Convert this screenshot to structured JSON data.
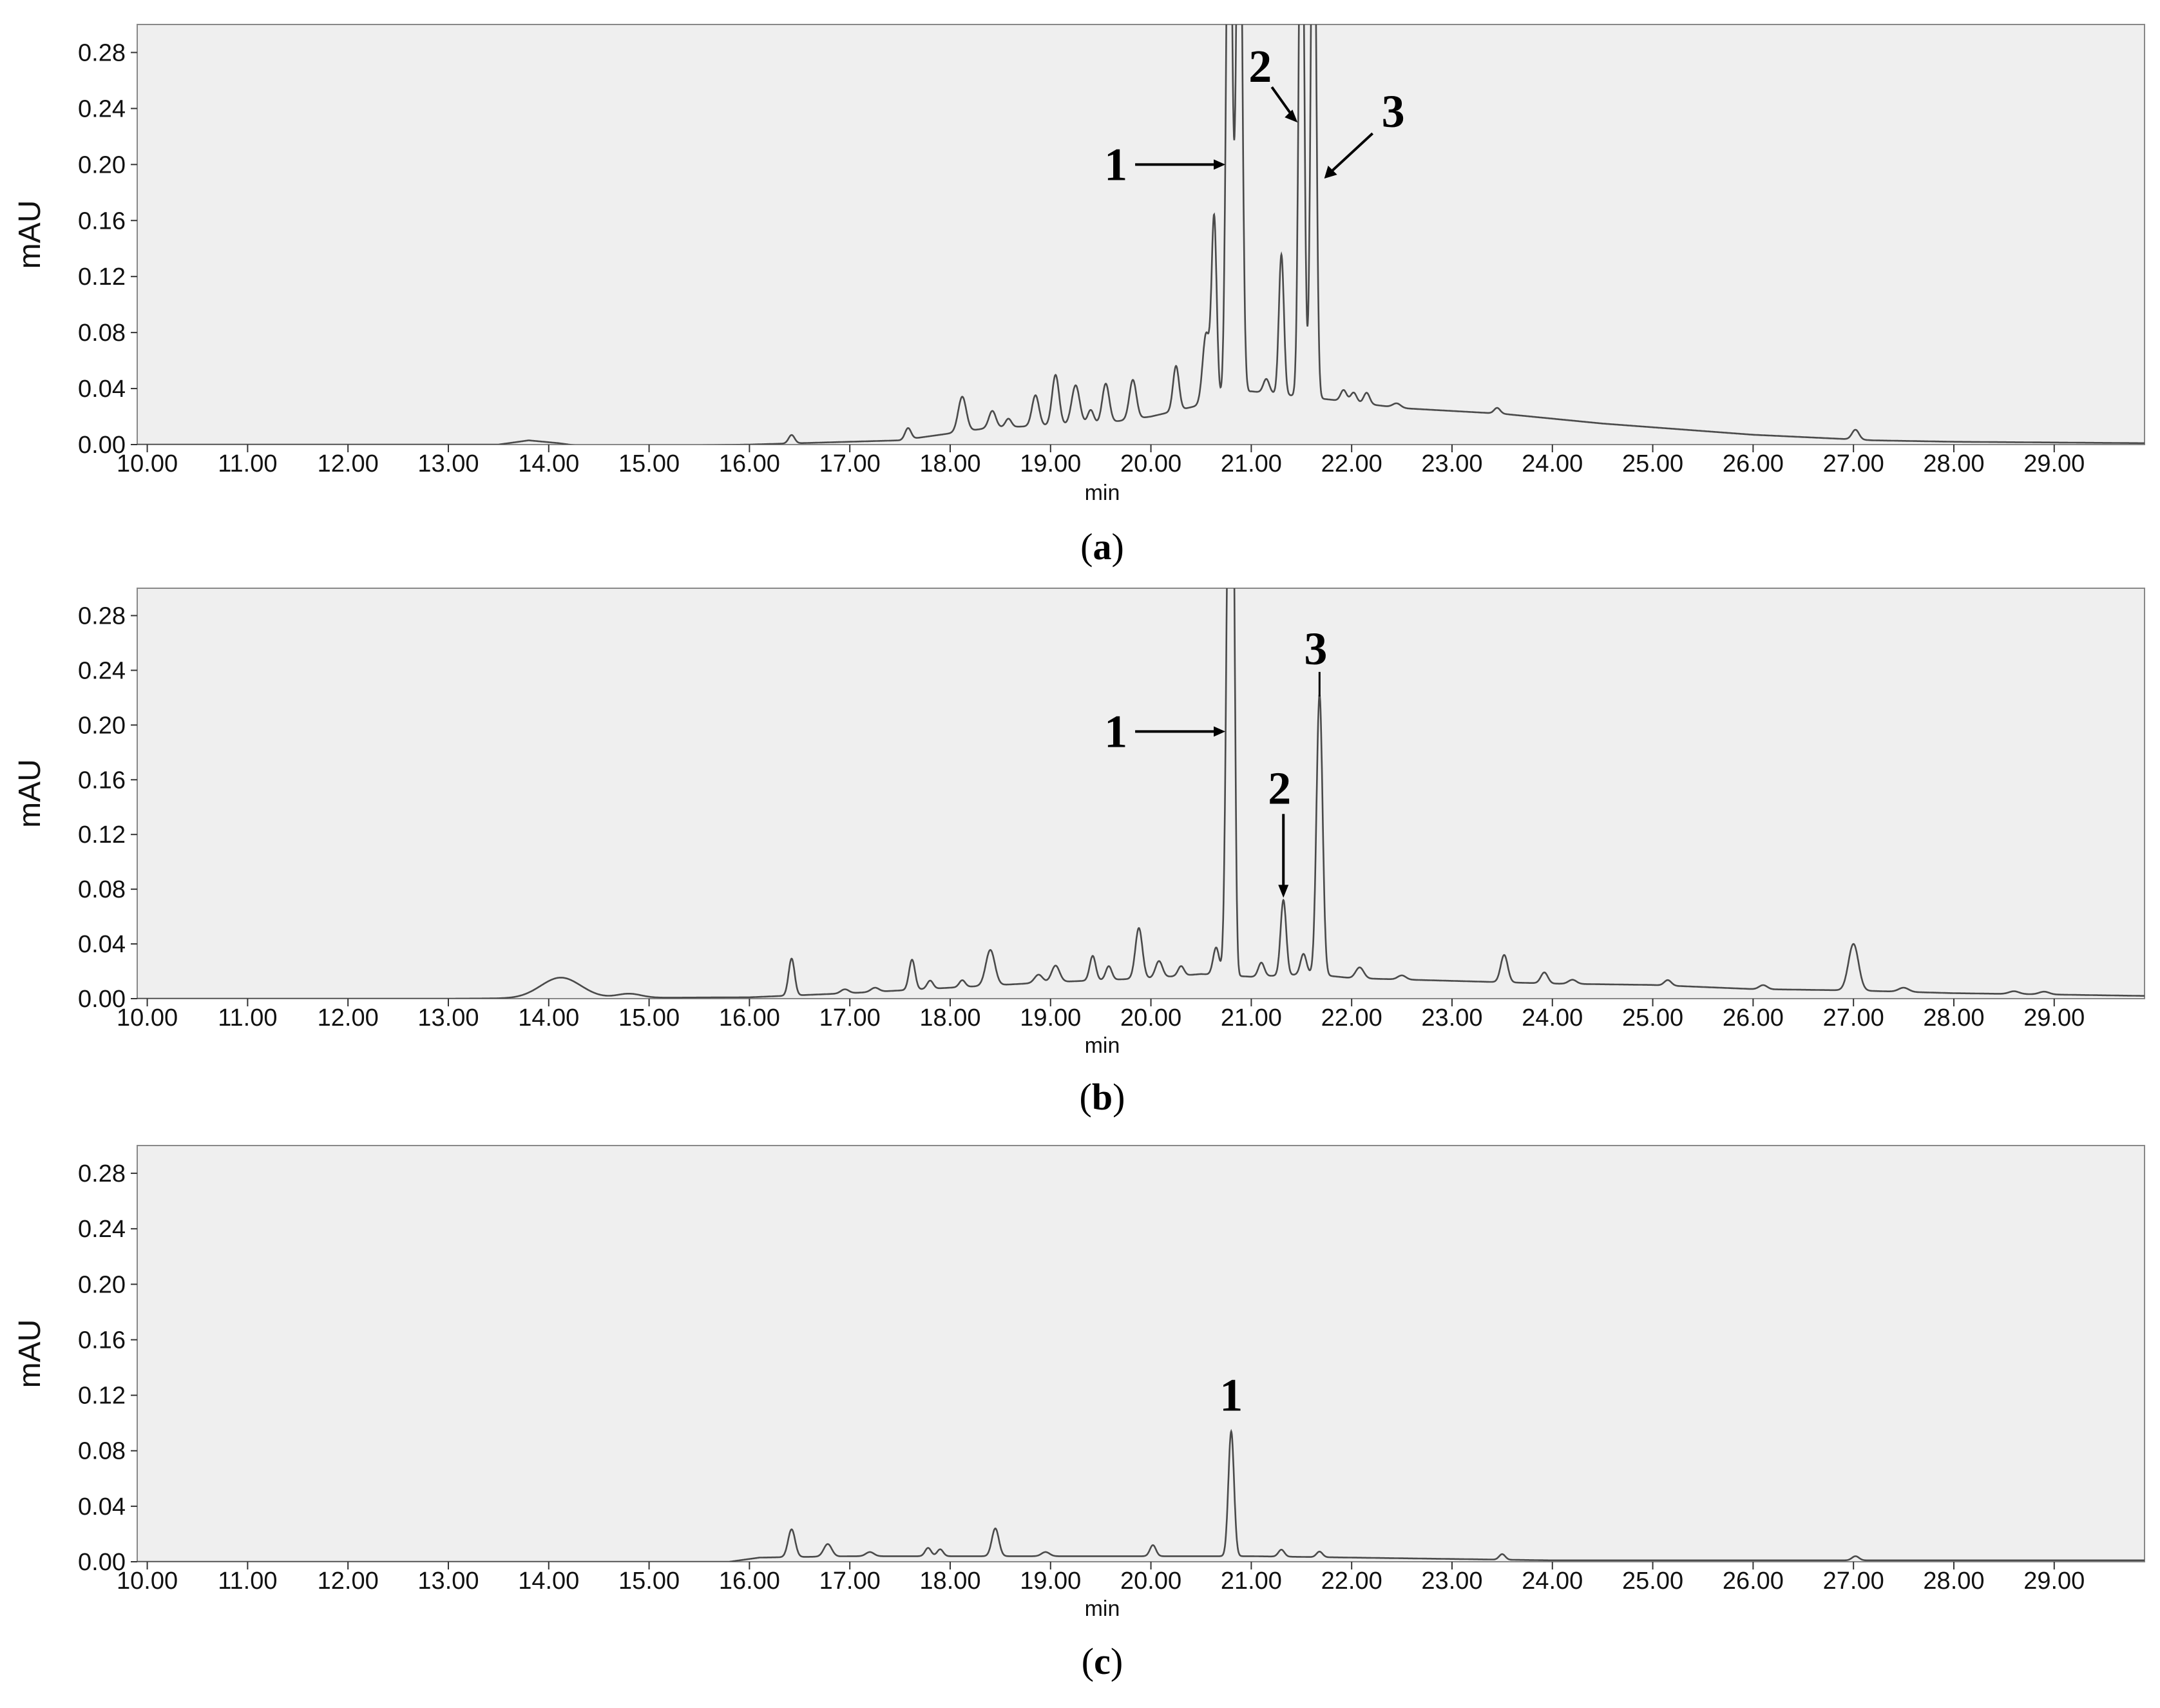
{
  "chart_data": [
    {
      "type": "line",
      "caption_letter": "a",
      "ylabel": "mAU",
      "xlabel": "min",
      "xlim": [
        9.9,
        29.9
      ],
      "ylim": [
        0.0,
        0.3
      ],
      "x_ticks": [
        "10.00",
        "11.00",
        "12.00",
        "13.00",
        "14.00",
        "15.00",
        "16.00",
        "17.00",
        "18.00",
        "19.00",
        "20.00",
        "21.00",
        "22.00",
        "23.00",
        "24.00",
        "25.00",
        "26.00",
        "27.00",
        "28.00",
        "29.00"
      ],
      "y_ticks": [
        "0.00",
        "0.04",
        "0.08",
        "0.12",
        "0.16",
        "0.20",
        "0.24",
        "0.28"
      ],
      "grid": false,
      "peak_labels": [
        {
          "label": "1",
          "x": 20.78,
          "y": 0.3
        },
        {
          "label": "2",
          "x": 21.5,
          "y": 0.3
        },
        {
          "label": "3",
          "x": 21.65,
          "y": 0.3
        }
      ],
      "baseline": [
        [
          9.9,
          0.0
        ],
        [
          13.5,
          0.0
        ],
        [
          13.8,
          0.003
        ],
        [
          14.1,
          0.001
        ],
        [
          14.4,
          -0.002
        ],
        [
          16.0,
          0.0
        ],
        [
          17.5,
          0.003
        ],
        [
          18.4,
          0.012
        ],
        [
          19.5,
          0.015
        ],
        [
          20.0,
          0.02
        ],
        [
          20.6,
          0.03
        ],
        [
          21.0,
          0.038
        ],
        [
          21.8,
          0.032
        ],
        [
          22.5,
          0.026
        ],
        [
          23.5,
          0.022
        ],
        [
          24.5,
          0.015
        ],
        [
          26.0,
          0.007
        ],
        [
          27.2,
          0.003
        ],
        [
          28.0,
          0.002
        ],
        [
          29.9,
          0.001
        ]
      ],
      "peaks": [
        {
          "x": 16.42,
          "h": 0.006,
          "w": 0.03
        },
        {
          "x": 17.58,
          "h": 0.008,
          "w": 0.03
        },
        {
          "x": 18.12,
          "h": 0.025,
          "w": 0.04
        },
        {
          "x": 18.42,
          "h": 0.012,
          "w": 0.035
        },
        {
          "x": 18.58,
          "h": 0.006,
          "w": 0.03
        },
        {
          "x": 18.85,
          "h": 0.022,
          "w": 0.035
        },
        {
          "x": 19.05,
          "h": 0.036,
          "w": 0.035
        },
        {
          "x": 19.25,
          "h": 0.028,
          "w": 0.04
        },
        {
          "x": 19.4,
          "h": 0.01,
          "w": 0.03
        },
        {
          "x": 19.55,
          "h": 0.028,
          "w": 0.035
        },
        {
          "x": 19.82,
          "h": 0.028,
          "w": 0.035
        },
        {
          "x": 20.25,
          "h": 0.032,
          "w": 0.03
        },
        {
          "x": 20.55,
          "h": 0.05,
          "w": 0.035
        },
        {
          "x": 20.63,
          "h": 0.13,
          "w": 0.025
        },
        {
          "x": 20.78,
          "h": 0.45,
          "w": 0.028
        },
        {
          "x": 20.88,
          "h": 0.45,
          "w": 0.028
        },
        {
          "x": 21.15,
          "h": 0.01,
          "w": 0.03
        },
        {
          "x": 21.3,
          "h": 0.1,
          "w": 0.025
        },
        {
          "x": 21.5,
          "h": 0.45,
          "w": 0.025
        },
        {
          "x": 21.62,
          "h": 0.45,
          "w": 0.025
        },
        {
          "x": 21.92,
          "h": 0.008,
          "w": 0.03
        },
        {
          "x": 22.02,
          "h": 0.007,
          "w": 0.03
        },
        {
          "x": 22.15,
          "h": 0.008,
          "w": 0.03
        },
        {
          "x": 22.45,
          "h": 0.003,
          "w": 0.04
        },
        {
          "x": 23.45,
          "h": 0.004,
          "w": 0.03
        },
        {
          "x": 27.02,
          "h": 0.007,
          "w": 0.035
        }
      ]
    },
    {
      "type": "line",
      "caption_letter": "b",
      "ylabel": "mAU",
      "xlabel": "min",
      "xlim": [
        9.9,
        29.9
      ],
      "ylim": [
        0.0,
        0.3
      ],
      "x_ticks": [
        "10.00",
        "11.00",
        "12.00",
        "13.00",
        "14.00",
        "15.00",
        "16.00",
        "17.00",
        "18.00",
        "19.00",
        "20.00",
        "21.00",
        "22.00",
        "23.00",
        "24.00",
        "25.00",
        "26.00",
        "27.00",
        "28.00",
        "29.00"
      ],
      "y_ticks": [
        "0.00",
        "0.04",
        "0.08",
        "0.12",
        "0.16",
        "0.20",
        "0.24",
        "0.28"
      ],
      "grid": false,
      "peak_labels": [
        {
          "label": "1",
          "x": 20.78,
          "y": 0.3
        },
        {
          "label": "2",
          "x": 21.32,
          "y": 0.07
        },
        {
          "label": "3",
          "x": 21.68,
          "y": 0.22
        }
      ],
      "baseline": [
        [
          9.9,
          0.0
        ],
        [
          13.0,
          0.0
        ],
        [
          16.0,
          0.001
        ],
        [
          17.0,
          0.004
        ],
        [
          18.0,
          0.008
        ],
        [
          19.0,
          0.012
        ],
        [
          20.0,
          0.015
        ],
        [
          20.5,
          0.018
        ],
        [
          21.0,
          0.016
        ],
        [
          21.6,
          0.018
        ],
        [
          22.0,
          0.015
        ],
        [
          23.0,
          0.013
        ],
        [
          24.0,
          0.011
        ],
        [
          25.0,
          0.01
        ],
        [
          26.0,
          0.007
        ],
        [
          27.0,
          0.006
        ],
        [
          28.0,
          0.004
        ],
        [
          29.0,
          0.003
        ],
        [
          29.9,
          0.002
        ]
      ],
      "peaks": [
        {
          "x": 14.12,
          "h": 0.015,
          "w": 0.2
        },
        {
          "x": 14.8,
          "h": 0.003,
          "w": 0.12
        },
        {
          "x": 16.42,
          "h": 0.027,
          "w": 0.03
        },
        {
          "x": 16.95,
          "h": 0.003,
          "w": 0.04
        },
        {
          "x": 17.25,
          "h": 0.003,
          "w": 0.04
        },
        {
          "x": 17.62,
          "h": 0.022,
          "w": 0.03
        },
        {
          "x": 17.8,
          "h": 0.006,
          "w": 0.03
        },
        {
          "x": 18.12,
          "h": 0.005,
          "w": 0.03
        },
        {
          "x": 18.4,
          "h": 0.026,
          "w": 0.045
        },
        {
          "x": 18.88,
          "h": 0.006,
          "w": 0.04
        },
        {
          "x": 19.05,
          "h": 0.012,
          "w": 0.04
        },
        {
          "x": 19.42,
          "h": 0.018,
          "w": 0.03
        },
        {
          "x": 19.58,
          "h": 0.01,
          "w": 0.03
        },
        {
          "x": 19.88,
          "h": 0.037,
          "w": 0.035
        },
        {
          "x": 20.08,
          "h": 0.012,
          "w": 0.035
        },
        {
          "x": 20.3,
          "h": 0.007,
          "w": 0.03
        },
        {
          "x": 20.65,
          "h": 0.02,
          "w": 0.03
        },
        {
          "x": 20.78,
          "h": 0.4,
          "w": 0.028
        },
        {
          "x": 20.82,
          "h": 0.25,
          "w": 0.02
        },
        {
          "x": 21.1,
          "h": 0.01,
          "w": 0.03
        },
        {
          "x": 21.32,
          "h": 0.055,
          "w": 0.028
        },
        {
          "x": 21.52,
          "h": 0.015,
          "w": 0.03
        },
        {
          "x": 21.68,
          "h": 0.205,
          "w": 0.03
        },
        {
          "x": 22.08,
          "h": 0.008,
          "w": 0.04
        },
        {
          "x": 22.5,
          "h": 0.003,
          "w": 0.04
        },
        {
          "x": 23.52,
          "h": 0.02,
          "w": 0.035
        },
        {
          "x": 23.92,
          "h": 0.008,
          "w": 0.035
        },
        {
          "x": 24.2,
          "h": 0.003,
          "w": 0.04
        },
        {
          "x": 25.15,
          "h": 0.004,
          "w": 0.035
        },
        {
          "x": 26.1,
          "h": 0.003,
          "w": 0.04
        },
        {
          "x": 27.0,
          "h": 0.034,
          "w": 0.05
        },
        {
          "x": 27.5,
          "h": 0.003,
          "w": 0.05
        },
        {
          "x": 28.6,
          "h": 0.002,
          "w": 0.05
        },
        {
          "x": 28.9,
          "h": 0.002,
          "w": 0.05
        }
      ]
    },
    {
      "type": "line",
      "caption_letter": "c",
      "ylabel": "mAU",
      "xlabel": "min",
      "xlim": [
        9.9,
        29.9
      ],
      "ylim": [
        0.0,
        0.3
      ],
      "x_ticks": [
        "10.00",
        "11.00",
        "12.00",
        "13.00",
        "14.00",
        "15.00",
        "16.00",
        "17.00",
        "18.00",
        "19.00",
        "20.00",
        "21.00",
        "22.00",
        "23.00",
        "24.00",
        "25.00",
        "26.00",
        "27.00",
        "28.00",
        "29.00"
      ],
      "y_ticks": [
        "0.00",
        "0.04",
        "0.08",
        "0.12",
        "0.16",
        "0.20",
        "0.24",
        "0.28"
      ],
      "grid": false,
      "peak_labels": [
        {
          "label": "1",
          "x": 20.8,
          "y": 0.095
        }
      ],
      "baseline": [
        [
          9.9,
          0.0
        ],
        [
          15.8,
          0.0
        ],
        [
          16.1,
          0.003
        ],
        [
          17.0,
          0.004
        ],
        [
          18.0,
          0.004
        ],
        [
          19.0,
          0.004
        ],
        [
          20.0,
          0.004
        ],
        [
          21.0,
          0.004
        ],
        [
          22.0,
          0.003
        ],
        [
          23.0,
          0.002
        ],
        [
          24.0,
          0.001
        ],
        [
          26.0,
          0.001
        ],
        [
          29.9,
          0.001
        ]
      ],
      "peaks": [
        {
          "x": 16.42,
          "h": 0.02,
          "w": 0.035
        },
        {
          "x": 16.78,
          "h": 0.009,
          "w": 0.04
        },
        {
          "x": 17.2,
          "h": 0.003,
          "w": 0.04
        },
        {
          "x": 17.78,
          "h": 0.006,
          "w": 0.03
        },
        {
          "x": 17.9,
          "h": 0.005,
          "w": 0.03
        },
        {
          "x": 18.45,
          "h": 0.02,
          "w": 0.035
        },
        {
          "x": 18.95,
          "h": 0.003,
          "w": 0.04
        },
        {
          "x": 20.02,
          "h": 0.008,
          "w": 0.03
        },
        {
          "x": 20.8,
          "h": 0.09,
          "w": 0.028
        },
        {
          "x": 21.3,
          "h": 0.005,
          "w": 0.03
        },
        {
          "x": 21.68,
          "h": 0.004,
          "w": 0.03
        },
        {
          "x": 23.5,
          "h": 0.004,
          "w": 0.03
        },
        {
          "x": 27.02,
          "h": 0.003,
          "w": 0.035
        }
      ]
    }
  ]
}
